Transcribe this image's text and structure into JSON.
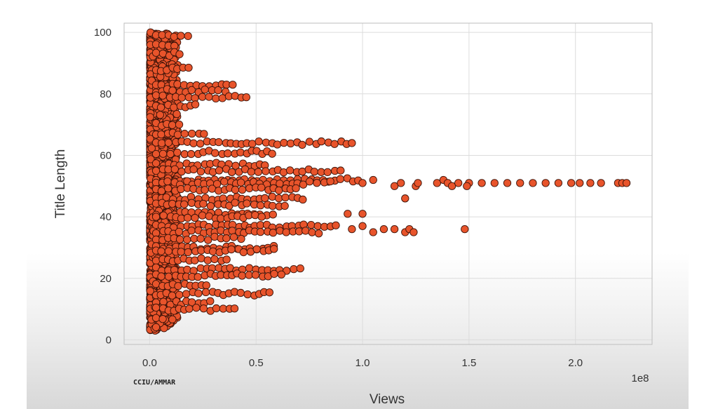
{
  "chart_data": {
    "type": "scatter",
    "title": "",
    "xlabel": "Views",
    "ylabel": "Title Length",
    "x_scale_label": "1e8",
    "xlim": [
      -0.12,
      2.36
    ],
    "ylim": [
      -1.5,
      103
    ],
    "x_ticks": [
      "0.0",
      "0.5",
      "1.0",
      "1.5",
      "2.0"
    ],
    "x_tick_values": [
      0,
      0.5,
      1.0,
      1.5,
      2.0
    ],
    "y_ticks": [
      "0",
      "20",
      "40",
      "60",
      "80",
      "100"
    ],
    "y_tick_values": [
      0,
      20,
      40,
      60,
      80,
      100
    ],
    "grid": true,
    "marker_color": "#e8542b",
    "marker_edge": "#3a1208",
    "series": [
      {
        "bands": [
          {
            "y": 99,
            "x_max": 0.2
          },
          {
            "y": 96,
            "x_max": 0.12
          },
          {
            "y": 93,
            "x_max": 0.16
          },
          {
            "y": 88,
            "x_max": 0.19
          },
          {
            "y": 83,
            "x_max": 0.42
          },
          {
            "y": 81,
            "x_max": 0.38
          },
          {
            "y": 79,
            "x_max": 0.46
          },
          {
            "y": 76,
            "x_max": 0.23
          },
          {
            "y": 70,
            "x_max": 0.16
          },
          {
            "y": 67,
            "x_max": 0.28
          },
          {
            "y": 64,
            "x_max": 0.95
          },
          {
            "y": 61,
            "x_max": 0.58
          },
          {
            "y": 57,
            "x_max": 0.55
          },
          {
            "y": 55,
            "x_max": 0.92
          },
          {
            "y": 52,
            "x_max": 1.0
          },
          {
            "y": 51,
            "x_max": 0.85
          },
          {
            "y": 49,
            "x_max": 0.7
          },
          {
            "y": 46,
            "x_max": 0.72
          },
          {
            "y": 44,
            "x_max": 0.65
          },
          {
            "y": 41,
            "x_max": 0.6
          },
          {
            "y": 40,
            "x_max": 0.55
          },
          {
            "y": 37,
            "x_max": 0.9
          },
          {
            "y": 35,
            "x_max": 0.8
          },
          {
            "y": 33,
            "x_max": 0.45
          },
          {
            "y": 30,
            "x_max": 0.6
          },
          {
            "y": 29,
            "x_max": 0.6
          },
          {
            "y": 26,
            "x_max": 0.38
          },
          {
            "y": 23,
            "x_max": 0.72
          },
          {
            "y": 21,
            "x_max": 0.62
          },
          {
            "y": 18,
            "x_max": 0.3
          },
          {
            "y": 15,
            "x_max": 0.57
          },
          {
            "y": 12,
            "x_max": 0.3
          },
          {
            "y": 10,
            "x_max": 0.4
          },
          {
            "y": 7,
            "x_max": 0.08
          },
          {
            "y": 4,
            "x_max": 0.05
          }
        ],
        "points": [
          {
            "x": 0.95,
            "y": 64
          },
          {
            "x": 1.05,
            "y": 52
          },
          {
            "x": 1.0,
            "y": 51
          },
          {
            "x": 1.15,
            "y": 50
          },
          {
            "x": 1.18,
            "y": 51
          },
          {
            "x": 1.2,
            "y": 46
          },
          {
            "x": 1.25,
            "y": 50
          },
          {
            "x": 1.26,
            "y": 51
          },
          {
            "x": 1.35,
            "y": 51
          },
          {
            "x": 1.38,
            "y": 52
          },
          {
            "x": 1.4,
            "y": 51
          },
          {
            "x": 1.42,
            "y": 50
          },
          {
            "x": 1.45,
            "y": 51
          },
          {
            "x": 1.5,
            "y": 51
          },
          {
            "x": 1.49,
            "y": 50
          },
          {
            "x": 1.56,
            "y": 51
          },
          {
            "x": 1.62,
            "y": 51
          },
          {
            "x": 1.68,
            "y": 51
          },
          {
            "x": 1.74,
            "y": 51
          },
          {
            "x": 1.8,
            "y": 51
          },
          {
            "x": 1.86,
            "y": 51
          },
          {
            "x": 1.92,
            "y": 51
          },
          {
            "x": 1.98,
            "y": 51
          },
          {
            "x": 2.02,
            "y": 51
          },
          {
            "x": 2.07,
            "y": 51
          },
          {
            "x": 2.12,
            "y": 51
          },
          {
            "x": 2.2,
            "y": 51
          },
          {
            "x": 2.22,
            "y": 51
          },
          {
            "x": 2.24,
            "y": 51
          },
          {
            "x": 0.95,
            "y": 36
          },
          {
            "x": 1.0,
            "y": 37
          },
          {
            "x": 1.05,
            "y": 35
          },
          {
            "x": 1.1,
            "y": 36
          },
          {
            "x": 1.15,
            "y": 36
          },
          {
            "x": 1.2,
            "y": 35
          },
          {
            "x": 1.22,
            "y": 36
          },
          {
            "x": 1.24,
            "y": 35
          },
          {
            "x": 1.48,
            "y": 36
          },
          {
            "x": 1.0,
            "y": 41
          },
          {
            "x": 0.93,
            "y": 41
          }
        ]
      }
    ]
  },
  "watermark": "CCIU/AMMAR"
}
